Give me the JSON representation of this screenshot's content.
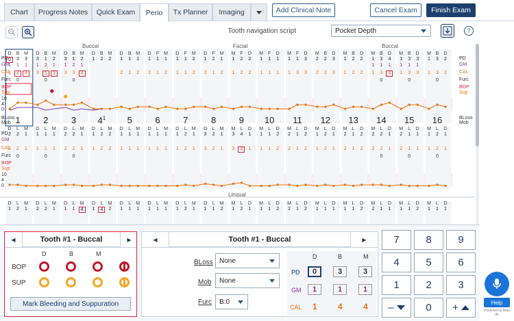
{
  "tabs": [
    {
      "label": "Chart",
      "active": false
    },
    {
      "label": "Progress Notes",
      "active": false
    },
    {
      "label": "Quick Exam",
      "active": false
    },
    {
      "label": "Perio",
      "active": true
    },
    {
      "label": "Tx Planner",
      "active": false
    },
    {
      "label": "Imaging",
      "active": false
    }
  ],
  "header": {
    "add_note": "Add Clinical Note",
    "cancel_exam": "Cancel Exam",
    "finish_exam": "Finish Exam"
  },
  "toolbar": {
    "nav_label": "Tooth navigation script",
    "nav_value": "Pocket Depth"
  },
  "chart": {
    "section_top": {
      "left": "Buccal",
      "center": "Facial",
      "right": "Buccal"
    },
    "section_mid": "Lingual",
    "row_labels_upper": [
      "PD",
      "GM",
      "CAL",
      "Furc",
      "BOP",
      "Sup",
      "10",
      "4",
      "0",
      "BLoss",
      "Mob"
    ],
    "row_labels_lower": [
      "PD",
      "GM",
      "CAL",
      "Furc",
      "BOP",
      "Sup",
      "10",
      "4",
      "0",
      "BLoss",
      "Mob"
    ],
    "teeth_upper": [
      {
        "num": "1",
        "sites": [
          "D",
          "B",
          "M"
        ],
        "pd": [
          "0",
          "3",
          "3"
        ],
        "gm": [
          "1",
          "1",
          "1"
        ],
        "cal": [
          "1",
          "4",
          "4"
        ],
        "furc": [
          "",
          "0",
          ""
        ]
      },
      {
        "num": "2",
        "sites": [
          "D",
          "B",
          "M"
        ],
        "pd": [
          "3",
          "1",
          "2"
        ],
        "gm": [
          "1",
          "2",
          "1"
        ],
        "cal": [
          "3",
          "5",
          "3"
        ],
        "furc": [
          "",
          "0",
          ""
        ]
      },
      {
        "num": "3",
        "sites": [
          "D",
          "B",
          "M"
        ],
        "pd": [
          "3",
          "1",
          "2"
        ],
        "gm": [
          "1",
          "2",
          "1"
        ],
        "cal": [
          "3",
          "3",
          "4"
        ],
        "furc": [
          "",
          "0",
          ""
        ]
      },
      {
        "num": "4",
        "sites": [
          "D",
          "B",
          "M"
        ],
        "pd": [
          "1",
          "2",
          "2"
        ],
        "gm": [
          "",
          "",
          ""
        ],
        "cal": [
          "",
          "",
          ""
        ],
        "furc": [
          "",
          "",
          ""
        ],
        "sub": "1"
      },
      {
        "num": "5",
        "sites": [
          "D",
          "B",
          "M"
        ],
        "pd": [
          "1",
          "1",
          "1"
        ],
        "gm": [
          "",
          "",
          ""
        ],
        "cal": [
          "2",
          "1",
          "2"
        ],
        "furc": [
          "",
          "",
          ""
        ]
      },
      {
        "num": "6",
        "sites": [
          "D",
          "F",
          "M"
        ],
        "pd": [
          "1",
          "1",
          "1"
        ],
        "gm": [
          "",
          "",
          ""
        ],
        "cal": [
          "2",
          "1",
          "2"
        ],
        "furc": [
          "",
          "",
          ""
        ]
      },
      {
        "num": "7",
        "sites": [
          "D",
          "F",
          "M"
        ],
        "pd": [
          "1",
          "1",
          "2"
        ],
        "gm": [
          "",
          "",
          ""
        ],
        "cal": [
          "1",
          "1",
          "2"
        ],
        "furc": [
          "",
          "",
          ""
        ]
      },
      {
        "num": "8",
        "sites": [
          "D",
          "F",
          "M"
        ],
        "pd": [
          "1",
          "2",
          "1"
        ],
        "gm": [
          "",
          "",
          ""
        ],
        "cal": [
          "2",
          "1",
          "2"
        ],
        "furc": [
          "",
          "",
          ""
        ]
      },
      {
        "num": "9",
        "sites": [
          "M",
          "F",
          "D"
        ],
        "pd": [
          "1",
          "2",
          "2"
        ],
        "gm": [
          "",
          "",
          ""
        ],
        "cal": [
          "1",
          "2",
          "2"
        ],
        "furc": [
          "",
          "",
          ""
        ]
      },
      {
        "num": "10",
        "sites": [
          "M",
          "F",
          "D"
        ],
        "pd": [
          "1",
          "1",
          "1"
        ],
        "gm": [
          "",
          "",
          ""
        ],
        "cal": [
          "1",
          "1",
          "1"
        ],
        "furc": [
          "",
          "",
          ""
        ]
      },
      {
        "num": "11",
        "sites": [
          "M",
          "F",
          "D"
        ],
        "pd": [
          "1",
          "1",
          "3"
        ],
        "gm": [
          "",
          "",
          ""
        ],
        "cal": [
          "1",
          "3",
          "3"
        ],
        "furc": [
          "",
          "",
          ""
        ]
      },
      {
        "num": "12",
        "sites": [
          "M",
          "B",
          "D"
        ],
        "pd": [
          "2",
          "2",
          "3"
        ],
        "gm": [
          "",
          "",
          ""
        ],
        "cal": [
          "2",
          "2",
          "3"
        ],
        "furc": [
          "",
          "",
          ""
        ]
      },
      {
        "num": "13",
        "sites": [
          "M",
          "B",
          "D"
        ],
        "pd": [
          "1",
          "2",
          "2"
        ],
        "gm": [
          "",
          "",
          ""
        ],
        "cal": [
          "1",
          "2",
          "2"
        ],
        "furc": [
          "",
          "",
          ""
        ]
      },
      {
        "num": "14",
        "sites": [
          "M",
          "B",
          "D"
        ],
        "pd": [
          "1",
          "3",
          "4"
        ],
        "gm": [
          "1",
          "1",
          "1"
        ],
        "cal": [
          "1",
          "3",
          "4"
        ],
        "furc": [
          "",
          "0",
          ""
        ]
      },
      {
        "num": "15",
        "sites": [
          "M",
          "B",
          "D"
        ],
        "pd": [
          "1",
          "3",
          "3"
        ],
        "gm": [
          "1",
          "1",
          "1"
        ],
        "cal": [
          "1",
          "3",
          "3"
        ],
        "furc": [
          "",
          "0",
          ""
        ]
      },
      {
        "num": "16",
        "sites": [
          "M",
          "B",
          "D"
        ],
        "pd": [
          "1",
          "3",
          "2"
        ],
        "gm": [
          "",
          "",
          ""
        ],
        "cal": [
          "1",
          "3",
          "2"
        ],
        "furc": [
          "",
          "0",
          ""
        ]
      }
    ],
    "teeth_lower": [
      {
        "sites": [
          "D",
          "L",
          "M"
        ],
        "pd": [
          "2",
          "2",
          "1"
        ],
        "cal": [
          "2",
          "2",
          "1"
        ],
        "furc": [
          "",
          "0",
          ""
        ]
      },
      {
        "sites": [
          "D",
          "L",
          "M"
        ],
        "pd": [
          "1",
          "1",
          "1"
        ],
        "cal": [
          "1",
          "1",
          "1"
        ],
        "furc": [
          "",
          "0",
          ""
        ]
      },
      {
        "sites": [
          "D",
          "L",
          "M"
        ],
        "pd": [
          "2",
          "2",
          "1"
        ],
        "cal": [
          "2",
          "2",
          "1"
        ],
        "furc": [
          "",
          "0",
          ""
        ]
      },
      {
        "sites": [
          "D",
          "L",
          "M"
        ],
        "pd": [
          "1",
          "2",
          "2"
        ],
        "cal": [
          "1",
          "2",
          "2"
        ],
        "furc": [
          "",
          "",
          ""
        ]
      },
      {
        "sites": [
          "D",
          "L",
          "M"
        ],
        "pd": [
          "1",
          "1",
          "1"
        ],
        "cal": [
          "1",
          "1",
          "1"
        ],
        "furc": [
          "",
          "",
          ""
        ]
      },
      {
        "sites": [
          "D",
          "L",
          "M"
        ],
        "pd": [
          "1",
          "1",
          "1"
        ],
        "cal": [
          "1",
          "1",
          "1"
        ],
        "furc": [
          "",
          "",
          ""
        ]
      },
      {
        "sites": [
          "D",
          "L",
          "M"
        ],
        "pd": [
          "1",
          "2",
          "1"
        ],
        "cal": [
          "1",
          "2",
          "1"
        ],
        "furc": [
          "",
          "",
          ""
        ]
      },
      {
        "sites": [
          "D",
          "L",
          "M"
        ],
        "pd": [
          "3",
          "2",
          "1"
        ],
        "cal": [
          "3",
          "2",
          "1"
        ],
        "furc": [
          "",
          "",
          ""
        ]
      },
      {
        "sites": [
          "M",
          "L",
          "D"
        ],
        "pd": [
          "3",
          "4",
          "1"
        ],
        "cal": [
          "3",
          "4",
          "1"
        ],
        "furc": [
          "",
          "",
          ""
        ]
      },
      {
        "sites": [
          "M",
          "L",
          "D"
        ],
        "pd": [
          "1",
          "1",
          "2"
        ],
        "cal": [
          "1",
          "1",
          "2"
        ],
        "furc": [
          "",
          "",
          ""
        ]
      },
      {
        "sites": [
          "M",
          "L",
          "D"
        ],
        "pd": [
          "2",
          "1",
          "2"
        ],
        "cal": [
          "2",
          "1",
          "2"
        ],
        "furc": [
          "",
          "",
          ""
        ]
      },
      {
        "sites": [
          "M",
          "L",
          "D"
        ],
        "pd": [
          "1",
          "2",
          "1"
        ],
        "cal": [
          "1",
          "2",
          "1"
        ],
        "furc": [
          "",
          "",
          ""
        ]
      },
      {
        "sites": [
          "M",
          "L",
          "D"
        ],
        "pd": [
          "2",
          "1",
          "2"
        ],
        "cal": [
          "2",
          "1",
          "2"
        ],
        "furc": [
          "",
          "",
          ""
        ]
      },
      {
        "sites": [
          "M",
          "L",
          "D"
        ],
        "pd": [
          "2",
          "2",
          "1"
        ],
        "cal": [
          "2",
          "2",
          "1"
        ],
        "furc": [
          "",
          "0",
          ""
        ]
      },
      {
        "sites": [
          "M",
          "L",
          "D"
        ],
        "pd": [
          "2",
          "1",
          "1"
        ],
        "cal": [
          "2",
          "1",
          "1"
        ],
        "furc": [
          "",
          "0",
          ""
        ]
      },
      {
        "sites": [
          "M",
          "L",
          "D"
        ],
        "pd": [
          "1",
          "2",
          "1"
        ],
        "cal": [
          "1",
          "2",
          "1"
        ],
        "furc": [
          "",
          "0",
          ""
        ]
      }
    ],
    "teeth_bottom": [
      {
        "sites": [
          "D",
          "L",
          "M"
        ],
        "pd": [
          "1",
          "2",
          "1"
        ]
      },
      {
        "sites": [
          "D",
          "L",
          "M"
        ],
        "pd": [
          "2",
          "2",
          "1"
        ]
      },
      {
        "sites": [
          "D",
          "L",
          "M"
        ],
        "pd": [
          "1",
          "1",
          "4"
        ]
      },
      {
        "sites": [
          "D",
          "L",
          "M"
        ],
        "pd": [
          "1",
          "4",
          "2"
        ]
      },
      {
        "sites": [
          "D",
          "L",
          "M"
        ],
        "pd": [
          "1",
          "1",
          "1"
        ]
      },
      {
        "sites": [
          "D",
          "L",
          "M"
        ],
        "pd": [
          "1",
          "1",
          "1"
        ]
      },
      {
        "sites": [
          "D",
          "L",
          "M"
        ],
        "pd": [
          "1",
          "2",
          "1"
        ]
      },
      {
        "sites": [
          "D",
          "L",
          "M"
        ],
        "pd": [
          "1",
          "1",
          "2"
        ]
      },
      {
        "sites": [
          "M",
          "L",
          "D"
        ],
        "pd": [
          "1",
          "2",
          "1"
        ]
      },
      {
        "sites": [
          "M",
          "L",
          "D"
        ],
        "pd": [
          "1",
          "1",
          "2"
        ]
      },
      {
        "sites": [
          "M",
          "L",
          "D"
        ],
        "pd": [
          "2",
          "1",
          "2"
        ]
      },
      {
        "sites": [
          "M",
          "L",
          "D"
        ],
        "pd": [
          "1",
          "1",
          "1"
        ]
      },
      {
        "sites": [
          "M",
          "L",
          "D"
        ],
        "pd": [
          "1",
          "1",
          "2"
        ]
      },
      {
        "sites": [
          "M",
          "L",
          "D"
        ],
        "pd": [
          "2",
          "1",
          "1"
        ]
      },
      {
        "sites": [
          "M",
          "L",
          "D"
        ],
        "pd": [
          "1",
          "1",
          "2"
        ]
      },
      {
        "sites": [
          "M",
          "L",
          "D"
        ],
        "pd": [
          "1",
          "1",
          "1"
        ]
      }
    ]
  },
  "bleeding_panel": {
    "title": "Tooth #1 - Buccal",
    "cols": [
      "D",
      "B",
      "M"
    ],
    "bop_label": "BOP",
    "sup_label": "SUP",
    "mark_button": "Mark Bleeding and Suppuration",
    "bop_color": "#c0182a",
    "sup_color": "#f5a623"
  },
  "detail_panel": {
    "title": "Tooth #1 - Buccal",
    "bloss_label": "BLoss",
    "bloss_value": "None",
    "mob_label": "Mob",
    "mob_value": "None",
    "furc_label": "Furc",
    "furc_value": "B:0",
    "cols": [
      "D",
      "B",
      "M"
    ],
    "pd_label": "PD",
    "pd": [
      "0",
      "3",
      "3"
    ],
    "gm_label": "GM",
    "gm": [
      "1",
      "1",
      "1"
    ],
    "cal_label": "CAL",
    "cal": [
      "1",
      "4",
      "4"
    ]
  },
  "keypad": {
    "keys": [
      "7",
      "8",
      "9",
      "4",
      "5",
      "6",
      "1",
      "2",
      "3",
      "–",
      "0",
      "+"
    ]
  },
  "assistant": {
    "help_label": "Help",
    "powered": "Powered by Bola AI"
  },
  "colors": {
    "accent": "#1d3f6e",
    "cal": "#e8730c",
    "gm": "#8a2e8f",
    "bop": "#d7263d",
    "line": "#e8730c",
    "line2": "#6a3fb5"
  }
}
